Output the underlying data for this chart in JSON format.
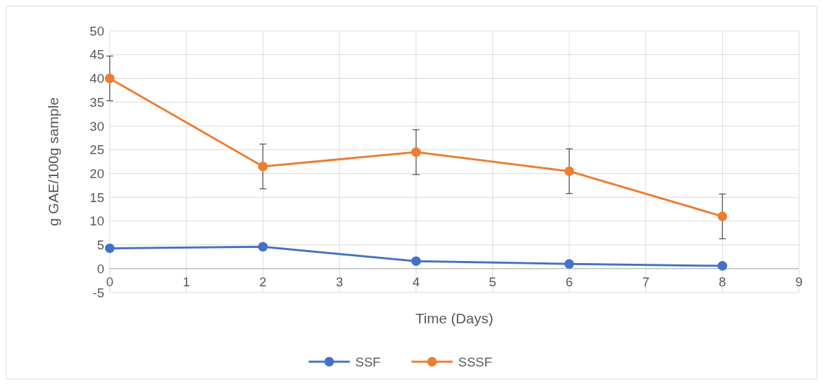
{
  "chart_data": {
    "type": "line",
    "xlabel": "Time (Days)",
    "ylabel": "g GAE/100g sample",
    "x": [
      0,
      2,
      4,
      6,
      8
    ],
    "series": [
      {
        "name": "SSF",
        "color": "#4472c4",
        "values": [
          4.3,
          4.6,
          1.6,
          1.0,
          0.6
        ]
      },
      {
        "name": "SSSF",
        "color": "#ed7d31",
        "values": [
          40,
          21.5,
          24.5,
          20.5,
          11
        ],
        "errors": [
          4.7,
          4.7,
          4.7,
          4.7,
          4.7
        ]
      }
    ],
    "xlim": [
      0,
      9
    ],
    "xticks": [
      0,
      1,
      2,
      3,
      4,
      5,
      6,
      7,
      8,
      9
    ],
    "ylim": [
      -5,
      50
    ],
    "yticks": [
      -5,
      0,
      5,
      10,
      15,
      20,
      25,
      30,
      35,
      40,
      45,
      50
    ],
    "grid": true,
    "legend": "bottom",
    "marker": "circle",
    "line_style": "solid"
  }
}
